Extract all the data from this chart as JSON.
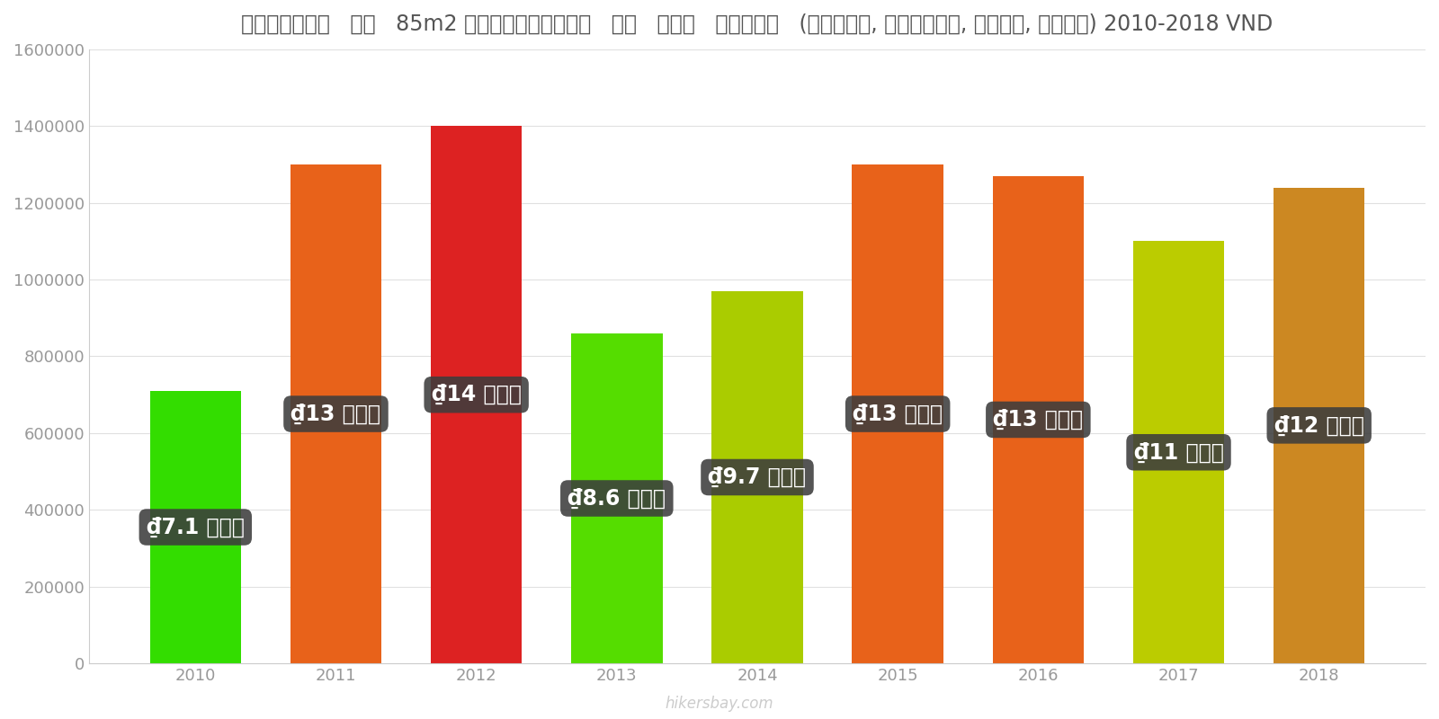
{
  "years": [
    "2010",
    "2011",
    "2012",
    "2013",
    "2014",
    "2015",
    "2016",
    "2017",
    "2018"
  ],
  "values": [
    710000,
    1300000,
    1400000,
    860000,
    970000,
    1300000,
    1270000,
    1100000,
    1240000
  ],
  "bar_colors": [
    "#33dd00",
    "#e8621a",
    "#dd2222",
    "#55dd00",
    "#aacc00",
    "#e8621a",
    "#e8621a",
    "#bbcc00",
    "#cc8822"
  ],
  "label_texts": [
    "₫7.1 लाख",
    "₫13 लाख",
    "₫14 लाख",
    "₫8.6 लाख",
    "₫9.7 लाख",
    "₫13 लाख",
    "₫13 लाख",
    "₫11 लाख",
    "₫12 लाख"
  ],
  "title": "वियतनाम   एक   85m2 अपार्टमेंट   के   लिए   शुल्क   (बिजली, हीटिंग, पानी, कचरा) 2010-2018 VND",
  "ylim": [
    0,
    1600000
  ],
  "yticks": [
    0,
    200000,
    400000,
    600000,
    800000,
    1000000,
    1200000,
    1400000,
    1600000
  ],
  "ytick_labels": [
    "0",
    "200000",
    "400000",
    "600000",
    "800000",
    "1000000",
    "1200000",
    "1400000",
    "1600000"
  ],
  "watermark": "hikersbay.com",
  "bg_color": "#ffffff",
  "label_box_color": "#3d3d3d",
  "label_text_color": "#ffffff",
  "bar_width": 0.65,
  "title_fontsize": 17,
  "tick_fontsize": 13,
  "label_fontsize": 17
}
